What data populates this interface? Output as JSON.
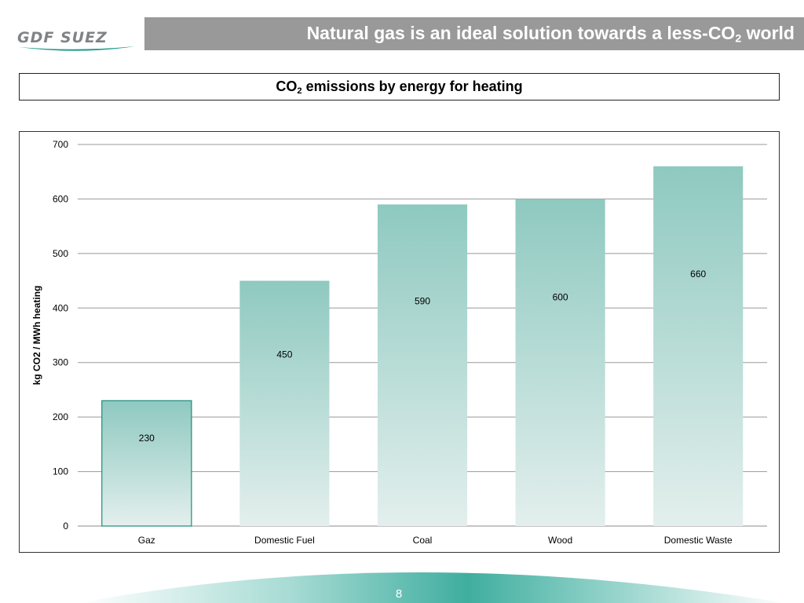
{
  "header": {
    "logo_text": "GDF SUEZ",
    "title_main": "Natural gas is an ideal solution towards a less-CO",
    "title_sub": "2",
    "title_end": " world"
  },
  "subtitle": {
    "prefix": "CO",
    "sub": "2",
    "suffix": " emissions by energy for heating"
  },
  "chart_data": {
    "type": "bar",
    "categories": [
      "Gaz",
      "Domestic Fuel",
      "Coal",
      "Wood",
      "Domestic Waste"
    ],
    "values": [
      230,
      450,
      590,
      600,
      660
    ],
    "ylabel": "kg CO2 / MWh heating",
    "ylim": [
      0,
      700
    ],
    "yticks": [
      0,
      100,
      200,
      300,
      400,
      500,
      600,
      700
    ],
    "grid": true,
    "bar_color_top": "#8ec9c0",
    "bar_color_bottom": "#e3efed",
    "highlight_border": "#1f8a7a"
  },
  "footer": {
    "page_number": "8",
    "wave_color": "#5bb8ad"
  }
}
